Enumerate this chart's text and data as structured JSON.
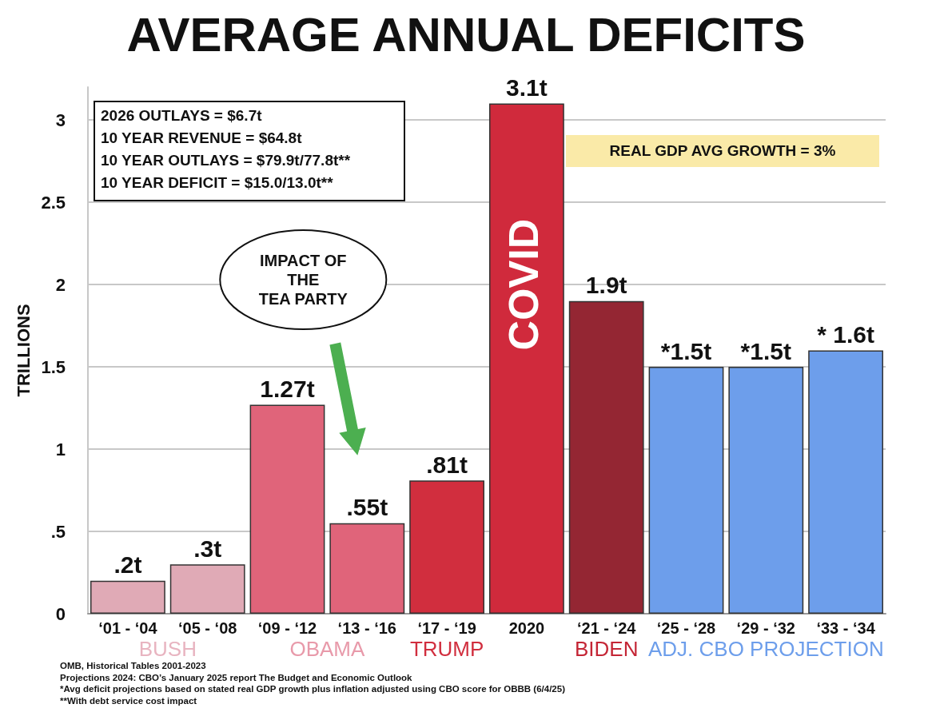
{
  "chart_data": {
    "type": "bar",
    "title": "AVERAGE ANNUAL DEFICITS",
    "ylabel": "TRILLIONS",
    "categories": [
      "‘01 - ‘04",
      "‘05 - ‘08",
      "‘09 - ‘12",
      "‘13 - ‘16",
      "‘17 - ‘19",
      "2020",
      "‘21 - ‘24",
      "‘25 - ‘28",
      "‘29 - ‘32",
      "‘33 - ‘34"
    ],
    "values": [
      0.2,
      0.3,
      1.27,
      0.55,
      0.81,
      3.1,
      1.9,
      1.5,
      1.5,
      1.6
    ],
    "colors": [
      "#e0aab6",
      "#e0aab6",
      "#e0647a",
      "#e0647a",
      "#d12e3e",
      "#d02a3c",
      "#942633",
      "#6d9eeb",
      "#6d9eeb",
      "#6d9eeb"
    ],
    "value_labels": [
      ".2t",
      ".3t",
      "1.27t",
      ".55t",
      ".81t",
      "3.1t",
      "1.9t",
      "*1.5t",
      "*1.5t",
      "* 1.6t"
    ],
    "ylim": [
      0,
      3.2
    ],
    "yticks": [
      0,
      {
        "value": 0.5,
        "label": ".5"
      },
      1,
      1.5,
      2,
      2.5,
      3
    ],
    "grid": "y",
    "annotations": [
      "BUSH",
      "OBAMA",
      "TRUMP",
      "BIDEN",
      "ADJ. CBO PROJECTION",
      "2026 OUTLAYS = $6.7t",
      "10 YEAR REVENUE = $64.8t",
      "10 YEAR OUTLAYS = $79.9t/77.8t**",
      "10 YEAR DEFICIT = $15.0/13.0t**",
      "REAL GDP AVG GROWTH = 3%",
      "COVID",
      "IMPACT OF THE TEA PARTY",
      "OMB, Historical Tables 2001-2023",
      "Projections 2024: CBO’s January 2025 report The Budget and Economic Outlook",
      "*Avg deficit projections based on stated real GDP growth plus inflation adjusted using CBO score for OBBB (6/4/25)",
      "**With debt service cost impact"
    ]
  }
}
